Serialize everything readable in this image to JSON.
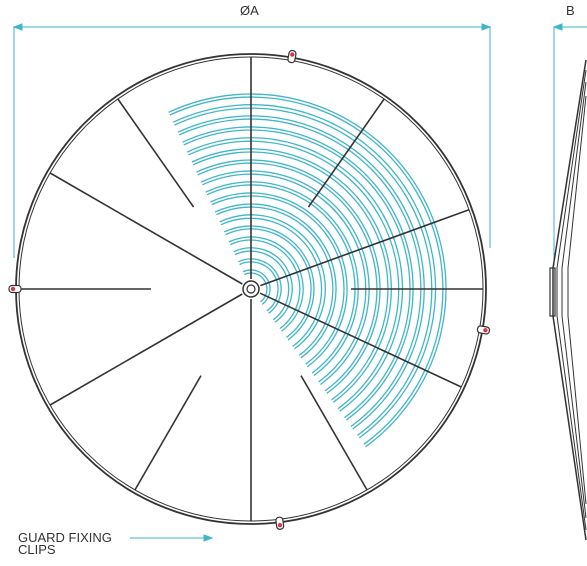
{
  "labels": {
    "diameter": "ØA",
    "depth": "B",
    "clips_line1": "GUARD FIXING",
    "clips_line2": "CLIPS"
  },
  "colors": {
    "frame": "#333333",
    "dimension": "#3fb6c9",
    "guard_rings": "#3fb6c9",
    "clip_dot": "#d4364a"
  },
  "features": {
    "guard_fixing_clips": 4,
    "spokes": 12,
    "guard_rings": 17
  }
}
